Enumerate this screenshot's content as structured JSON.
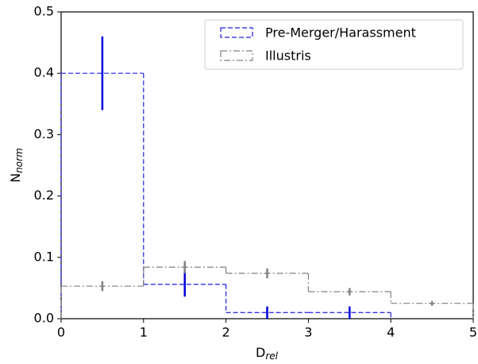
{
  "chart_data": {
    "type": "step-histogram",
    "xlabel": "D",
    "xlabel_sub": "rel",
    "ylabel": "N",
    "ylabel_sub": "norm",
    "xlim": [
      0,
      5
    ],
    "xticks": [
      0,
      1,
      2,
      3,
      4,
      5
    ],
    "ylim": [
      0,
      0.5
    ],
    "yticks": [
      {
        "value": 0,
        "label": "0.0"
      },
      0.1,
      0.2,
      0.3,
      0.4,
      0.5
    ],
    "legend": "upper right",
    "series": [
      {
        "name": "Pre-Merger/Harassment",
        "color": "#1f1fe0",
        "errcolor": "#0000dd",
        "dash": "dashed",
        "bins": [
          0,
          1,
          2,
          3,
          4
        ],
        "values": [
          0.4,
          0.056,
          0.01,
          0.01
        ],
        "errors": [
          0.06,
          0.02,
          0.01,
          0.01
        ]
      },
      {
        "name": "Illustris",
        "color": "#808080",
        "errcolor": "#808080",
        "dash": "dashdot",
        "capsize": true,
        "bins": [
          0,
          1,
          2,
          3,
          4,
          5
        ],
        "values": [
          0.053,
          0.084,
          0.074,
          0.044,
          0.025
        ],
        "errors": [
          0.008,
          0.01,
          0.008,
          0.006,
          0.004
        ]
      }
    ]
  }
}
